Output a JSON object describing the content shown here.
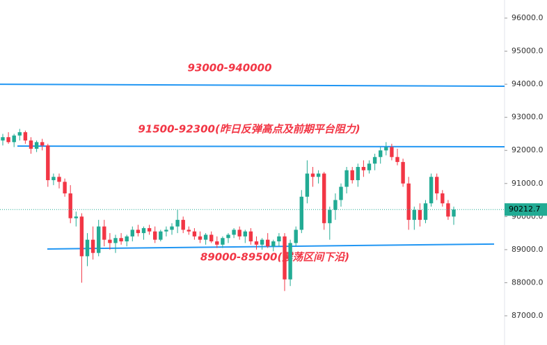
{
  "chart_data": {
    "type": "candlestick",
    "ylim": [
      86117,
      96547
    ],
    "yticks": [
      {
        "value": 87000,
        "label": "87000.0"
      },
      {
        "value": 88000,
        "label": "88000.0"
      },
      {
        "value": 89000,
        "label": "89000.0"
      },
      {
        "value": 90000,
        "label": "90000.0"
      },
      {
        "value": 91000,
        "label": "91000.0"
      },
      {
        "value": 92000,
        "label": "92000.0"
      },
      {
        "value": 93000,
        "label": "93000.0"
      },
      {
        "value": 94000,
        "label": "94000.0"
      },
      {
        "value": 95000,
        "label": "95000.0"
      },
      {
        "value": 96000,
        "label": "96000.0"
      }
    ],
    "up_color": "#22ab94",
    "down_color": "#f23645",
    "line_color": "#2196f3",
    "last_price": 90212.7,
    "levels": [
      {
        "label": "93000-940000",
        "values": [
          94000,
          93940
        ]
      },
      {
        "label": "91500-92300(昨日反弹高点及前期平台阻力)",
        "values": [
          92130,
          92110
        ]
      },
      {
        "label": "89000-89500(震荡区间下沿)",
        "values": [
          89020,
          89170
        ]
      }
    ],
    "ohlc": [
      [
        92300,
        92500,
        92150,
        92400
      ],
      [
        92400,
        92550,
        92200,
        92250
      ],
      [
        92250,
        92500,
        92100,
        92450
      ],
      [
        92450,
        92650,
        92300,
        92550
      ],
      [
        92550,
        92600,
        92200,
        92300
      ],
      [
        92300,
        92400,
        91900,
        92050
      ],
      [
        92050,
        92300,
        91950,
        92250
      ],
      [
        92250,
        92350,
        92000,
        92150
      ],
      [
        92150,
        92200,
        90900,
        91100
      ],
      [
        91100,
        91300,
        90950,
        91200
      ],
      [
        91200,
        91300,
        90850,
        91050
      ],
      [
        91050,
        91150,
        90600,
        90700
      ],
      [
        90700,
        90950,
        89800,
        89950
      ],
      [
        89950,
        90150,
        89700,
        90000
      ],
      [
        90000,
        90100,
        88000,
        88800
      ],
      [
        88800,
        89500,
        88500,
        89300
      ],
      [
        89300,
        89700,
        88700,
        88900
      ],
      [
        88900,
        89900,
        88800,
        89700
      ],
      [
        89700,
        89900,
        89100,
        89300
      ],
      [
        89300,
        89500,
        89000,
        89200
      ],
      [
        89200,
        89450,
        88900,
        89350
      ],
      [
        89350,
        89500,
        89150,
        89250
      ],
      [
        89250,
        89450,
        89100,
        89400
      ],
      [
        89400,
        89700,
        89250,
        89600
      ],
      [
        89600,
        89750,
        89400,
        89500
      ],
      [
        89500,
        89700,
        89300,
        89650
      ],
      [
        89650,
        89750,
        89450,
        89550
      ],
      [
        89550,
        89700,
        89200,
        89300
      ],
      [
        89300,
        89600,
        89250,
        89550
      ],
      [
        89550,
        89700,
        89400,
        89600
      ],
      [
        89600,
        89800,
        89450,
        89700
      ],
      [
        89700,
        90200,
        89500,
        89900
      ],
      [
        89900,
        90000,
        89500,
        89600
      ],
      [
        89600,
        89700,
        89450,
        89550
      ],
      [
        89550,
        89650,
        89300,
        89400
      ],
      [
        89400,
        89550,
        89200,
        89300
      ],
      [
        89300,
        89500,
        89150,
        89450
      ],
      [
        89450,
        89550,
        89200,
        89250
      ],
      [
        89250,
        89400,
        89050,
        89150
      ],
      [
        89150,
        89400,
        89050,
        89350
      ],
      [
        89350,
        89500,
        89200,
        89450
      ],
      [
        89450,
        89650,
        89350,
        89600
      ],
      [
        89600,
        89700,
        89300,
        89400
      ],
      [
        89400,
        89600,
        89200,
        89550
      ],
      [
        89550,
        89650,
        89150,
        89250
      ],
      [
        89250,
        89400,
        89000,
        89150
      ],
      [
        89150,
        89350,
        89000,
        89300
      ],
      [
        89300,
        89500,
        89050,
        89100
      ],
      [
        89100,
        89300,
        88950,
        89250
      ],
      [
        89250,
        89500,
        89100,
        89400
      ],
      [
        89400,
        89500,
        87750,
        88100
      ],
      [
        88100,
        89300,
        87900,
        89200
      ],
      [
        89200,
        89700,
        89100,
        89600
      ],
      [
        89600,
        90800,
        89500,
        90600
      ],
      [
        90600,
        91700,
        90400,
        91300
      ],
      [
        91300,
        91500,
        90900,
        91200
      ],
      [
        91200,
        91400,
        91000,
        91300
      ],
      [
        91300,
        91350,
        89600,
        89800
      ],
      [
        89800,
        90300,
        89300,
        90200
      ],
      [
        90200,
        90700,
        89900,
        90500
      ],
      [
        90500,
        91000,
        90300,
        90900
      ],
      [
        90900,
        91500,
        90700,
        91400
      ],
      [
        91400,
        91500,
        91000,
        91100
      ],
      [
        91100,
        91600,
        90900,
        91500
      ],
      [
        91500,
        91700,
        91200,
        91400
      ],
      [
        91400,
        91700,
        91300,
        91600
      ],
      [
        91600,
        91900,
        91400,
        91800
      ],
      [
        91800,
        92100,
        91600,
        92000
      ],
      [
        92000,
        92250,
        91850,
        92100
      ],
      [
        92100,
        92200,
        91700,
        91800
      ],
      [
        91800,
        92050,
        91550,
        91650
      ],
      [
        91650,
        91750,
        90900,
        91000
      ],
      [
        91000,
        91200,
        89600,
        89900
      ],
      [
        89900,
        90300,
        89600,
        90200
      ],
      [
        90200,
        90400,
        89700,
        89900
      ],
      [
        89900,
        90500,
        89800,
        90400
      ],
      [
        90400,
        91300,
        90300,
        91200
      ],
      [
        91200,
        91300,
        90500,
        90700
      ],
      [
        90700,
        90800,
        90300,
        90400
      ],
      [
        90400,
        90500,
        89900,
        90000
      ],
      [
        90000,
        90300,
        89750,
        90212.7
      ]
    ]
  }
}
